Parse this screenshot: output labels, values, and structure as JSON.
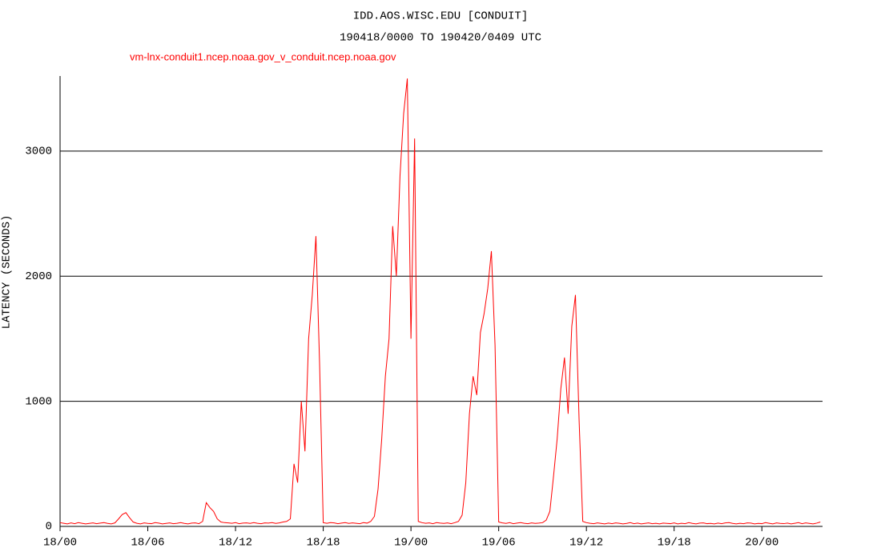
{
  "chart_data": {
    "type": "line",
    "title": "IDD.AOS.WISC.EDU [CONDUIT]",
    "subtitle": "190418/0000 TO 190420/0409 UTC",
    "y_label": "LATENCY (SECONDS)",
    "x": [
      0,
      0.25,
      0.5,
      0.75,
      1,
      1.25,
      1.5,
      1.75,
      2,
      2.25,
      2.5,
      2.75,
      3,
      3.25,
      3.5,
      3.75,
      4,
      4.25,
      4.5,
      4.75,
      5,
      5.25,
      5.5,
      5.75,
      6,
      6.25,
      6.5,
      6.75,
      7,
      7.25,
      7.5,
      7.75,
      8,
      8.25,
      8.5,
      8.75,
      9,
      9.25,
      9.5,
      9.75,
      10,
      10.25,
      10.5,
      10.75,
      11,
      11.25,
      11.5,
      11.75,
      12,
      12.25,
      12.5,
      12.75,
      13,
      13.25,
      13.5,
      13.75,
      14,
      14.25,
      14.5,
      14.75,
      15,
      15.25,
      15.5,
      15.75,
      16,
      16.25,
      16.5,
      16.75,
      17,
      17.25,
      17.5,
      17.75,
      18,
      18.25,
      18.5,
      18.75,
      19,
      19.25,
      19.5,
      19.75,
      20,
      20.25,
      20.5,
      20.75,
      21,
      21.25,
      21.5,
      21.75,
      22,
      22.25,
      22.5,
      22.75,
      23,
      23.25,
      23.5,
      23.75,
      24,
      24.25,
      24.5,
      24.75,
      25,
      25.25,
      25.5,
      25.75,
      26,
      26.25,
      26.5,
      26.75,
      27,
      27.25,
      27.5,
      27.75,
      28,
      28.25,
      28.5,
      28.75,
      29,
      29.25,
      29.5,
      29.75,
      30,
      30.25,
      30.5,
      30.75,
      31,
      31.25,
      31.5,
      31.75,
      32,
      32.25,
      32.5,
      32.75,
      33,
      33.25,
      33.5,
      33.75,
      34,
      34.25,
      34.5,
      34.75,
      35,
      35.25,
      35.5,
      35.75,
      36,
      36.25,
      36.5,
      36.75,
      37,
      37.25,
      37.5,
      37.75,
      38,
      38.25,
      38.5,
      38.75,
      39,
      39.25,
      39.5,
      39.75,
      40,
      40.25,
      40.5,
      40.75,
      41,
      41.25,
      41.5,
      41.75,
      42,
      42.25,
      42.5,
      42.75,
      43,
      43.25,
      43.5,
      43.75,
      44,
      44.25,
      44.5,
      44.75,
      45,
      45.25,
      45.5,
      45.75,
      46,
      46.25,
      46.5,
      46.75,
      47,
      47.25,
      47.5,
      47.75,
      48,
      48.25,
      48.5,
      48.75,
      49,
      49.25,
      49.5,
      49.75,
      50,
      50.25,
      50.5,
      50.75,
      51,
      51.25,
      51.5,
      51.75,
      52
    ],
    "series": [
      {
        "name": "vm-lnx-conduit1.ncep.noaa.gov_v_conduit.ncep.noaa.gov",
        "color": "#ff0000",
        "values": [
          30,
          25,
          20,
          28,
          22,
          30,
          25,
          20,
          24,
          28,
          22,
          26,
          30,
          24,
          20,
          28,
          60,
          95,
          110,
          70,
          35,
          25,
          20,
          28,
          24,
          22,
          30,
          26,
          20,
          24,
          28,
          22,
          25,
          30,
          24,
          20,
          26,
          28,
          22,
          40,
          190,
          150,
          120,
          60,
          35,
          30,
          28,
          25,
          30,
          22,
          26,
          28,
          24,
          30,
          25,
          22,
          28,
          26,
          30,
          24,
          28,
          35,
          40,
          60,
          500,
          350,
          1000,
          600,
          1500,
          1850,
          2320,
          1300,
          30,
          25,
          30,
          28,
          22,
          26,
          30,
          24,
          28,
          25,
          22,
          30,
          26,
          40,
          80,
          300,
          700,
          1200,
          1500,
          2400,
          2000,
          2800,
          3300,
          3580,
          1500,
          3100,
          40,
          30,
          25,
          28,
          22,
          30,
          26,
          24,
          28,
          22,
          30,
          40,
          90,
          350,
          900,
          1200,
          1050,
          1550,
          1700,
          1900,
          2200,
          1450,
          35,
          28,
          24,
          30,
          22,
          26,
          30,
          25,
          22,
          28,
          24,
          26,
          30,
          50,
          120,
          400,
          700,
          1100,
          1350,
          900,
          1600,
          1850,
          850,
          40,
          30,
          25,
          22,
          28,
          24,
          20,
          26,
          22,
          28,
          25,
          20,
          24,
          30,
          22,
          26,
          20,
          24,
          28,
          22,
          25,
          20,
          26,
          24,
          22,
          28,
          20,
          25,
          22,
          30,
          24,
          20,
          26,
          28,
          22,
          24,
          20,
          26,
          22,
          28,
          30,
          24,
          20,
          25,
          22,
          28,
          26,
          20,
          24,
          22,
          30,
          25,
          20,
          28,
          24,
          22,
          26,
          20,
          25,
          30,
          22,
          28,
          24,
          20,
          26,
          35
        ]
      }
    ],
    "xlim": [
      0,
      52.15
    ],
    "xticks": [
      {
        "value": 0,
        "label": "18/00"
      },
      {
        "value": 6,
        "label": "18/06"
      },
      {
        "value": 12,
        "label": "18/12"
      },
      {
        "value": 18,
        "label": "18/18"
      },
      {
        "value": 24,
        "label": "19/00"
      },
      {
        "value": 30,
        "label": "19/06"
      },
      {
        "value": 36,
        "label": "19/12"
      },
      {
        "value": 42,
        "label": "19/18"
      },
      {
        "value": 48,
        "label": "20/00"
      }
    ],
    "ylim": [
      0,
      3600
    ],
    "yticks": [
      0,
      1000,
      2000,
      3000
    ],
    "grid": true
  }
}
